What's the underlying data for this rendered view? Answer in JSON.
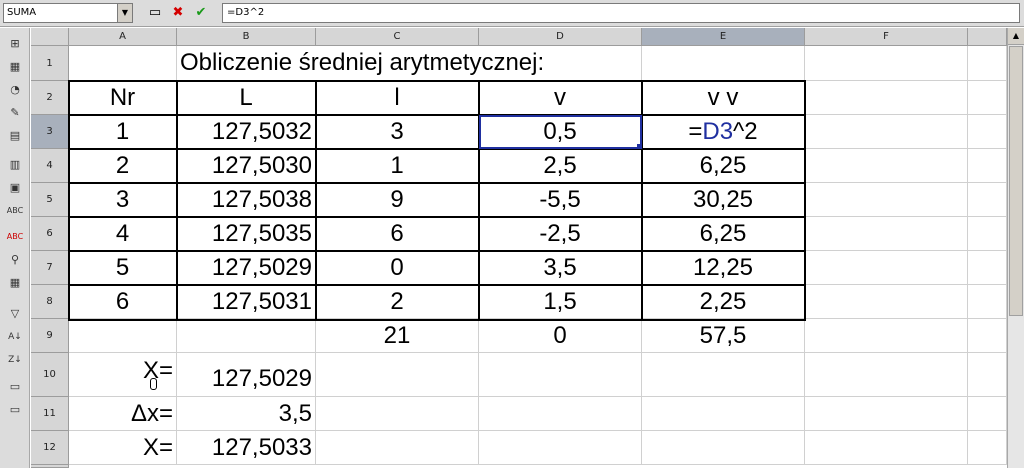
{
  "formula_bar": {
    "name_box": "SUMA",
    "formula": "=D3^2"
  },
  "columns": [
    "A",
    "B",
    "C",
    "D",
    "E",
    "F"
  ],
  "rows": [
    "1",
    "2",
    "3",
    "4",
    "5",
    "6",
    "7",
    "8",
    "9",
    "10",
    "11",
    "12"
  ],
  "sheet": {
    "title": "Obliczenie średniej arytmetycznej:",
    "header": {
      "nr": "Nr",
      "L": "L",
      "l": "l",
      "v": "v",
      "vv": "v v"
    },
    "data": [
      {
        "nr": "1",
        "L": "127,5032",
        "l": "3",
        "v": "0,5",
        "vv_prefix": "=",
        "vv_ref": "D3",
        "vv_suffix": "^2"
      },
      {
        "nr": "2",
        "L": "127,5030",
        "l": "1",
        "v": "2,5",
        "vv": "6,25"
      },
      {
        "nr": "3",
        "L": "127,5038",
        "l": "9",
        "v": "-5,5",
        "vv": "30,25"
      },
      {
        "nr": "4",
        "L": "127,5035",
        "l": "6",
        "v": "-2,5",
        "vv": "6,25"
      },
      {
        "nr": "5",
        "L": "127,5029",
        "l": "0",
        "v": "3,5",
        "vv": "12,25"
      },
      {
        "nr": "6",
        "L": "127,5031",
        "l": "2",
        "v": "1,5",
        "vv": "2,25"
      }
    ],
    "totals": {
      "l": "21",
      "v": "0",
      "vv": "57,5"
    },
    "summary": [
      {
        "label": "X=",
        "value": "127,5029"
      },
      {
        "label": "Δx=",
        "value": "3,5"
      },
      {
        "label": "X=",
        "value": "127,5033"
      }
    ]
  },
  "colors": {
    "active_cell": "#1f2fa0",
    "selected_header": "#a8b0bc",
    "ref_text": "#1f2fa0"
  }
}
